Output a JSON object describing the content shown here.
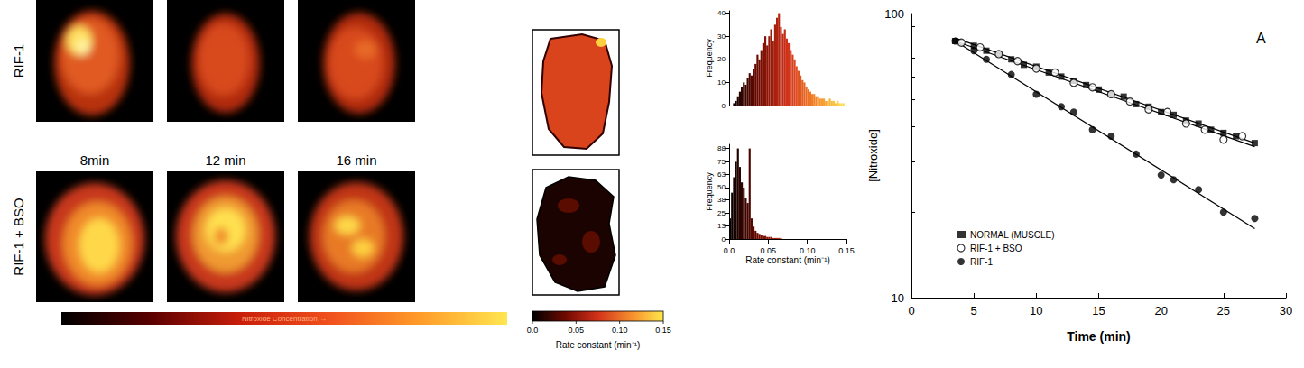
{
  "image_panels": {
    "rows": [
      "RIF-1",
      "RIF-1 + BSO"
    ],
    "times": [
      "8min",
      "12 min",
      "16 min"
    ],
    "colorbar_label": "Nitroxide Concentration →",
    "colors": [
      "#000000",
      "#5a0000",
      "#c81e0a",
      "#f0501e",
      "#ff9a28",
      "#ffe650"
    ]
  },
  "rate_maps": {
    "colorbar": {
      "range": [
        0,
        0.15
      ],
      "ticks": [
        {
          "value": 0,
          "label": "0.0"
        },
        0.05,
        {
          "value": 0.1,
          "label": "0.10"
        },
        0.15
      ],
      "label": "Rate constant (min⁻¹)",
      "colors": [
        "#000000",
        "#6e0a00",
        "#d2321a",
        "#f58c2d",
        "#ffe84a"
      ]
    }
  },
  "chart_data": [
    {
      "type": "histogram",
      "ylabel": "Frequency",
      "tick_labels": "y",
      "bins": [
        0,
        0.0025,
        0.005,
        0.0075,
        0.01,
        0.0125,
        0.015,
        0.0175,
        0.02,
        0.0225,
        0.025,
        0.0275,
        0.03,
        0.0325,
        0.035,
        0.0375,
        0.04,
        0.0425,
        0.045,
        0.0475,
        0.05,
        0.0525,
        0.055,
        0.0575,
        0.06,
        0.0625,
        0.065,
        0.0675,
        0.07,
        0.0725,
        0.075,
        0.0775,
        0.08,
        0.0825,
        0.085,
        0.0875,
        0.09,
        0.0925,
        0.095,
        0.0975,
        0.1,
        0.1025,
        0.105,
        0.1075,
        0.11,
        0.1125,
        0.115,
        0.1175,
        0.12,
        0.1225,
        0.125,
        0.1275,
        0.13,
        0.1325,
        0.135,
        0.1375,
        0.14,
        0.1425,
        0.145,
        0.1475,
        0.15
      ],
      "counts": [
        0,
        0,
        1,
        2,
        4,
        6,
        8,
        10,
        9,
        12,
        14,
        13,
        16,
        18,
        22,
        20,
        24,
        27,
        30,
        26,
        30,
        33,
        28,
        35,
        38,
        40,
        34,
        31,
        33,
        29,
        27,
        24,
        22,
        20,
        17,
        15,
        13,
        11,
        10,
        8,
        7,
        6,
        5,
        5,
        4,
        4,
        3,
        3,
        3,
        2,
        2,
        3,
        2,
        2,
        1,
        2,
        1,
        1,
        1,
        0
      ],
      "xlim": [
        0,
        0.15
      ],
      "ylim": [
        0,
        41
      ],
      "yticks": [
        0,
        10,
        20,
        30,
        40
      ],
      "grid": false
    },
    {
      "type": "histogram",
      "ylabel": "Frequency",
      "xlabel": "Rate constant (min⁻¹)",
      "bins": [
        0,
        0.0025,
        0.005,
        0.0075,
        0.01,
        0.0125,
        0.015,
        0.0175,
        0.02,
        0.0225,
        0.025,
        0.0275,
        0.03,
        0.0325,
        0.035,
        0.0375,
        0.04,
        0.0425,
        0.045,
        0.0475,
        0.05,
        0.0525,
        0.055,
        0.0575,
        0.06,
        0.0625,
        0.065,
        0.0675,
        0.07,
        0.0725,
        0.075,
        0.0775,
        0.08,
        0.0825,
        0.085,
        0.0875,
        0.09,
        0.0925,
        0.095,
        0.0975,
        0.1,
        0.1025,
        0.105,
        0.1075,
        0.11,
        0.1125,
        0.115,
        0.1175,
        0.12,
        0.1225,
        0.125,
        0.1275,
        0.13,
        0.1325,
        0.135,
        0.1375,
        0.14,
        0.1425,
        0.145,
        0.1475,
        0.15
      ],
      "counts": [
        20,
        45,
        60,
        75,
        88,
        70,
        55,
        50,
        40,
        35,
        88,
        20,
        12,
        8,
        6,
        5,
        4,
        3,
        3,
        2,
        2,
        2,
        1,
        1,
        1,
        1,
        1,
        0,
        0,
        0,
        0,
        0,
        0,
        0,
        0,
        0,
        0,
        0,
        0,
        0,
        0,
        0,
        0,
        0,
        0,
        0,
        0,
        0,
        0,
        0,
        0,
        0,
        0,
        0,
        0,
        0,
        0,
        0,
        0,
        0
      ],
      "xlim": [
        0,
        0.15
      ],
      "xticks": [
        {
          "value": 0,
          "label": "0.0"
        },
        0.05,
        {
          "value": 0.1,
          "label": "0.10"
        },
        0.15
      ],
      "ylim": [
        0,
        92
      ],
      "yticks": [
        0,
        13,
        25,
        38,
        50,
        63,
        75,
        88
      ],
      "grid": false
    },
    {
      "type": "scatter",
      "log": "y",
      "xlabel": "Time (min)",
      "ylabel": "[Nitroxide]",
      "annotation": "A",
      "xlim": [
        0,
        30
      ],
      "xticks": [
        0,
        5,
        10,
        15,
        20,
        25,
        30
      ],
      "ylim": [
        10,
        100
      ],
      "yticks": [
        10,
        100
      ],
      "grid": false,
      "legend": "lower left",
      "series": [
        {
          "name": "NORMAL (MUSCLE)",
          "color": "#000000",
          "marker": "square",
          "x": [
            3.5,
            5,
            6,
            7,
            8,
            9,
            10,
            11,
            12,
            13,
            14,
            15,
            16,
            17,
            18,
            19,
            20,
            21,
            22,
            23,
            24,
            25,
            26,
            27.5
          ],
          "values": [
            80,
            77,
            74,
            72,
            69,
            66,
            65,
            62,
            60,
            58,
            56,
            54,
            52,
            51,
            48,
            47,
            45,
            44,
            42,
            41,
            39,
            38,
            37,
            35
          ],
          "fit": {
            "x": [
              3.5,
              27.5
            ],
            "values": [
              82,
              35
            ]
          }
        },
        {
          "name": "RIF-1 + BSO",
          "color": "#000000",
          "marker": "open_circle",
          "x": [
            4,
            5.5,
            7,
            8.5,
            10,
            11.5,
            13,
            14.5,
            16,
            17.5,
            19,
            20.5,
            22,
            23.5,
            25,
            26.5
          ],
          "values": [
            79,
            76,
            72,
            68,
            64,
            62,
            57,
            55,
            52,
            49,
            46,
            45,
            41,
            39,
            36,
            37
          ],
          "fit": {
            "x": [
              3.5,
              27.5
            ],
            "values": [
              80,
              34
            ]
          }
        },
        {
          "name": "RIF-1",
          "color": "#000000",
          "marker": "circle",
          "x": [
            3.5,
            5,
            6,
            8,
            10,
            12,
            13,
            14.5,
            16,
            18,
            20,
            21,
            23,
            25,
            27.5
          ],
          "values": [
            80,
            74,
            69,
            61,
            52,
            47,
            45,
            39,
            37,
            32,
            27,
            26,
            24,
            20,
            19
          ],
          "fit": {
            "x": [
              3.5,
              27.5
            ],
            "values": [
              80,
              17.5
            ]
          }
        }
      ]
    }
  ]
}
